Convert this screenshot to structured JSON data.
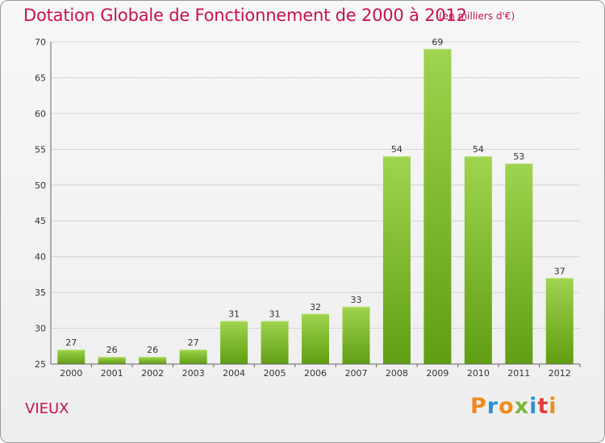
{
  "header": {
    "title": "Dotation Globale de Fonctionnement de 2000 à 2012",
    "unit": "(en milliers d'€)"
  },
  "footer": {
    "commune": "VIEUX",
    "logo": "Proxiti"
  },
  "colors": {
    "title": "#c8104f",
    "bar_top": "#9fd44e",
    "bar_bottom": "#5f9e12",
    "logo_letters": [
      "#f08a1c",
      "#2f8fd8",
      "#f08a1c",
      "#7ab83a",
      "#2f8fd8",
      "#e23c3c",
      "#f08a1c"
    ]
  },
  "chart_data": {
    "type": "bar",
    "categories": [
      "2000",
      "2001",
      "2002",
      "2003",
      "2004",
      "2005",
      "2006",
      "2007",
      "2008",
      "2009",
      "2010",
      "2011",
      "2012"
    ],
    "values": [
      27,
      26,
      26,
      27,
      31,
      31,
      32,
      33,
      54,
      69,
      54,
      53,
      37
    ],
    "title": "Dotation Globale de Fonctionnement de 2000 à 2012",
    "ylim": [
      25,
      70
    ],
    "yticks": [
      25,
      30,
      35,
      40,
      45,
      50,
      55,
      60,
      65,
      70
    ],
    "grid": true,
    "legend": "none"
  }
}
